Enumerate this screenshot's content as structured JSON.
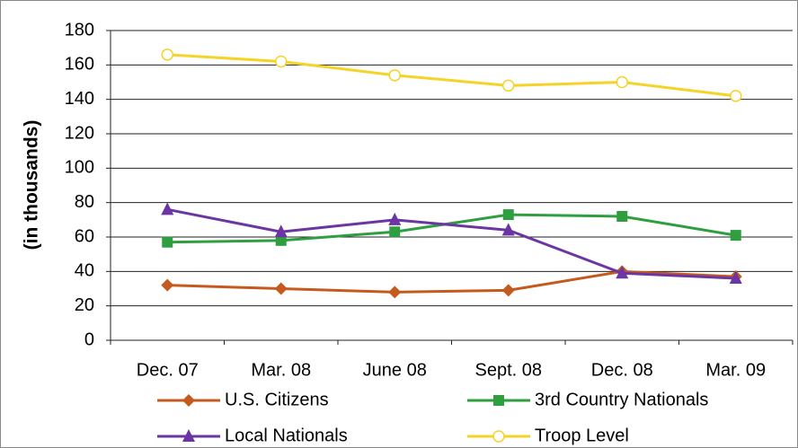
{
  "chart_data": {
    "type": "line",
    "y_axis_label": "(in thousands)",
    "categories": [
      "Dec. 07",
      "Mar. 08",
      "June 08",
      "Sept. 08",
      "Dec. 08",
      "Mar. 09"
    ],
    "series": [
      {
        "name": "U.S. Citizens",
        "color": "#c55a1e",
        "marker": "diamond",
        "values": [
          32,
          30,
          28,
          29,
          40,
          37
        ]
      },
      {
        "name": "3rd Country Nationals",
        "color": "#2e9e3e",
        "marker": "square",
        "values": [
          57,
          58,
          63,
          73,
          72,
          61
        ]
      },
      {
        "name": "Local Nationals",
        "color": "#6b35a3",
        "marker": "triangle",
        "values": [
          76,
          63,
          70,
          64,
          39,
          36
        ]
      },
      {
        "name": "Troop Level",
        "color": "#f5d327",
        "marker": "circle",
        "values": [
          166,
          162,
          154,
          148,
          150,
          142
        ]
      }
    ],
    "ylim": [
      0,
      180
    ],
    "yticks": [
      0,
      20,
      40,
      60,
      80,
      100,
      120,
      140,
      160,
      180
    ],
    "grid": true
  }
}
